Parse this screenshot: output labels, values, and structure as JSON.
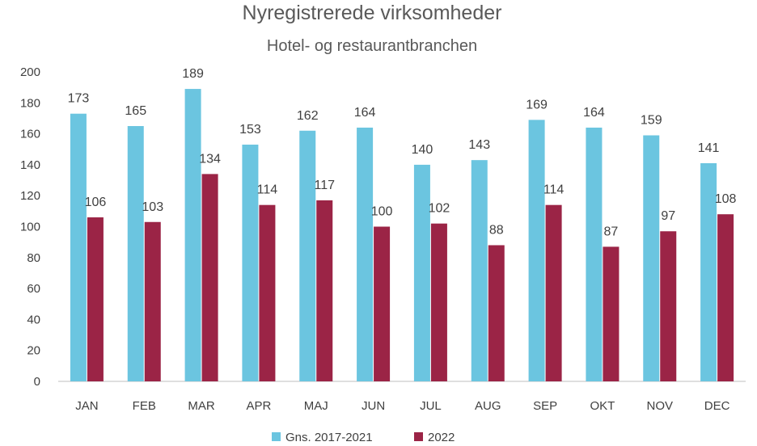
{
  "chart_data": {
    "type": "bar",
    "title": "Nyregistrerede virksomheder",
    "subtitle": "Hotel- og restaurantbranchen",
    "categories": [
      "JAN",
      "FEB",
      "MAR",
      "APR",
      "MAJ",
      "JUN",
      "JUL",
      "AUG",
      "SEP",
      "OKT",
      "NOV",
      "DEC"
    ],
    "series": [
      {
        "name": "Gns. 2017-2021",
        "color": "#6bc5e0",
        "values": [
          173,
          165,
          189,
          153,
          162,
          164,
          140,
          143,
          169,
          164,
          159,
          141
        ]
      },
      {
        "name": "2022",
        "color": "#9b2446",
        "values": [
          106,
          103,
          134,
          114,
          117,
          100,
          102,
          88,
          114,
          87,
          97,
          108
        ]
      }
    ],
    "ylim": [
      0,
      200
    ],
    "yticks": [
      0,
      20,
      40,
      60,
      80,
      100,
      120,
      140,
      160,
      180,
      200
    ],
    "grid": false,
    "legend": "bottom-center"
  }
}
